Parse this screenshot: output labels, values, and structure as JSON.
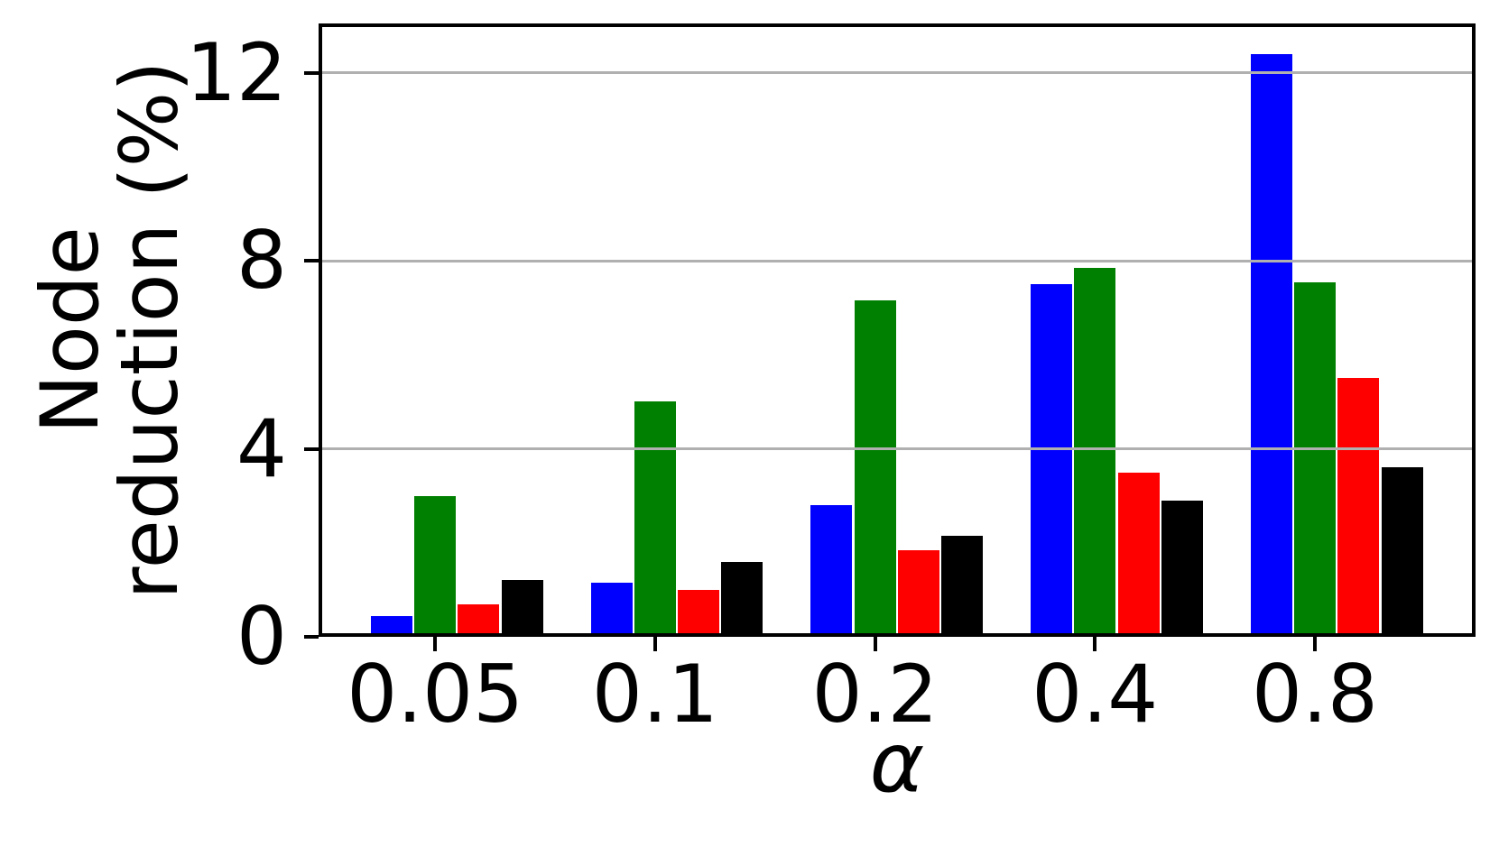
{
  "chart_data": {
    "type": "bar",
    "title": "",
    "xlabel": "α",
    "ylabel_lines": [
      "Node",
      "reduction (%)"
    ],
    "categories": [
      "0.05",
      "0.1",
      "0.2",
      "0.4",
      "0.8"
    ],
    "series": [
      {
        "name": "blue-series",
        "color": "#0000ff",
        "values": [
          0.45,
          1.15,
          2.8,
          7.5,
          12.4
        ]
      },
      {
        "name": "green-series",
        "color": "#008000",
        "values": [
          3.0,
          5.0,
          7.15,
          7.85,
          7.55
        ]
      },
      {
        "name": "red-series",
        "color": "#ff0000",
        "values": [
          0.7,
          1.0,
          1.85,
          3.5,
          5.5
        ]
      },
      {
        "name": "black-series",
        "color": "#000000",
        "values": [
          1.2,
          1.6,
          2.15,
          2.9,
          3.6
        ]
      }
    ],
    "yticks": [
      0,
      4,
      8,
      12
    ],
    "ytick_labels": [
      "0",
      "4",
      "8",
      "12"
    ],
    "ylim": [
      0,
      13.05
    ],
    "grid": true,
    "grid_over_bars": true,
    "gridline_color": "#b0b0b0",
    "legend": "none",
    "background": "#ffffff",
    "spine_color": "#000000"
  }
}
